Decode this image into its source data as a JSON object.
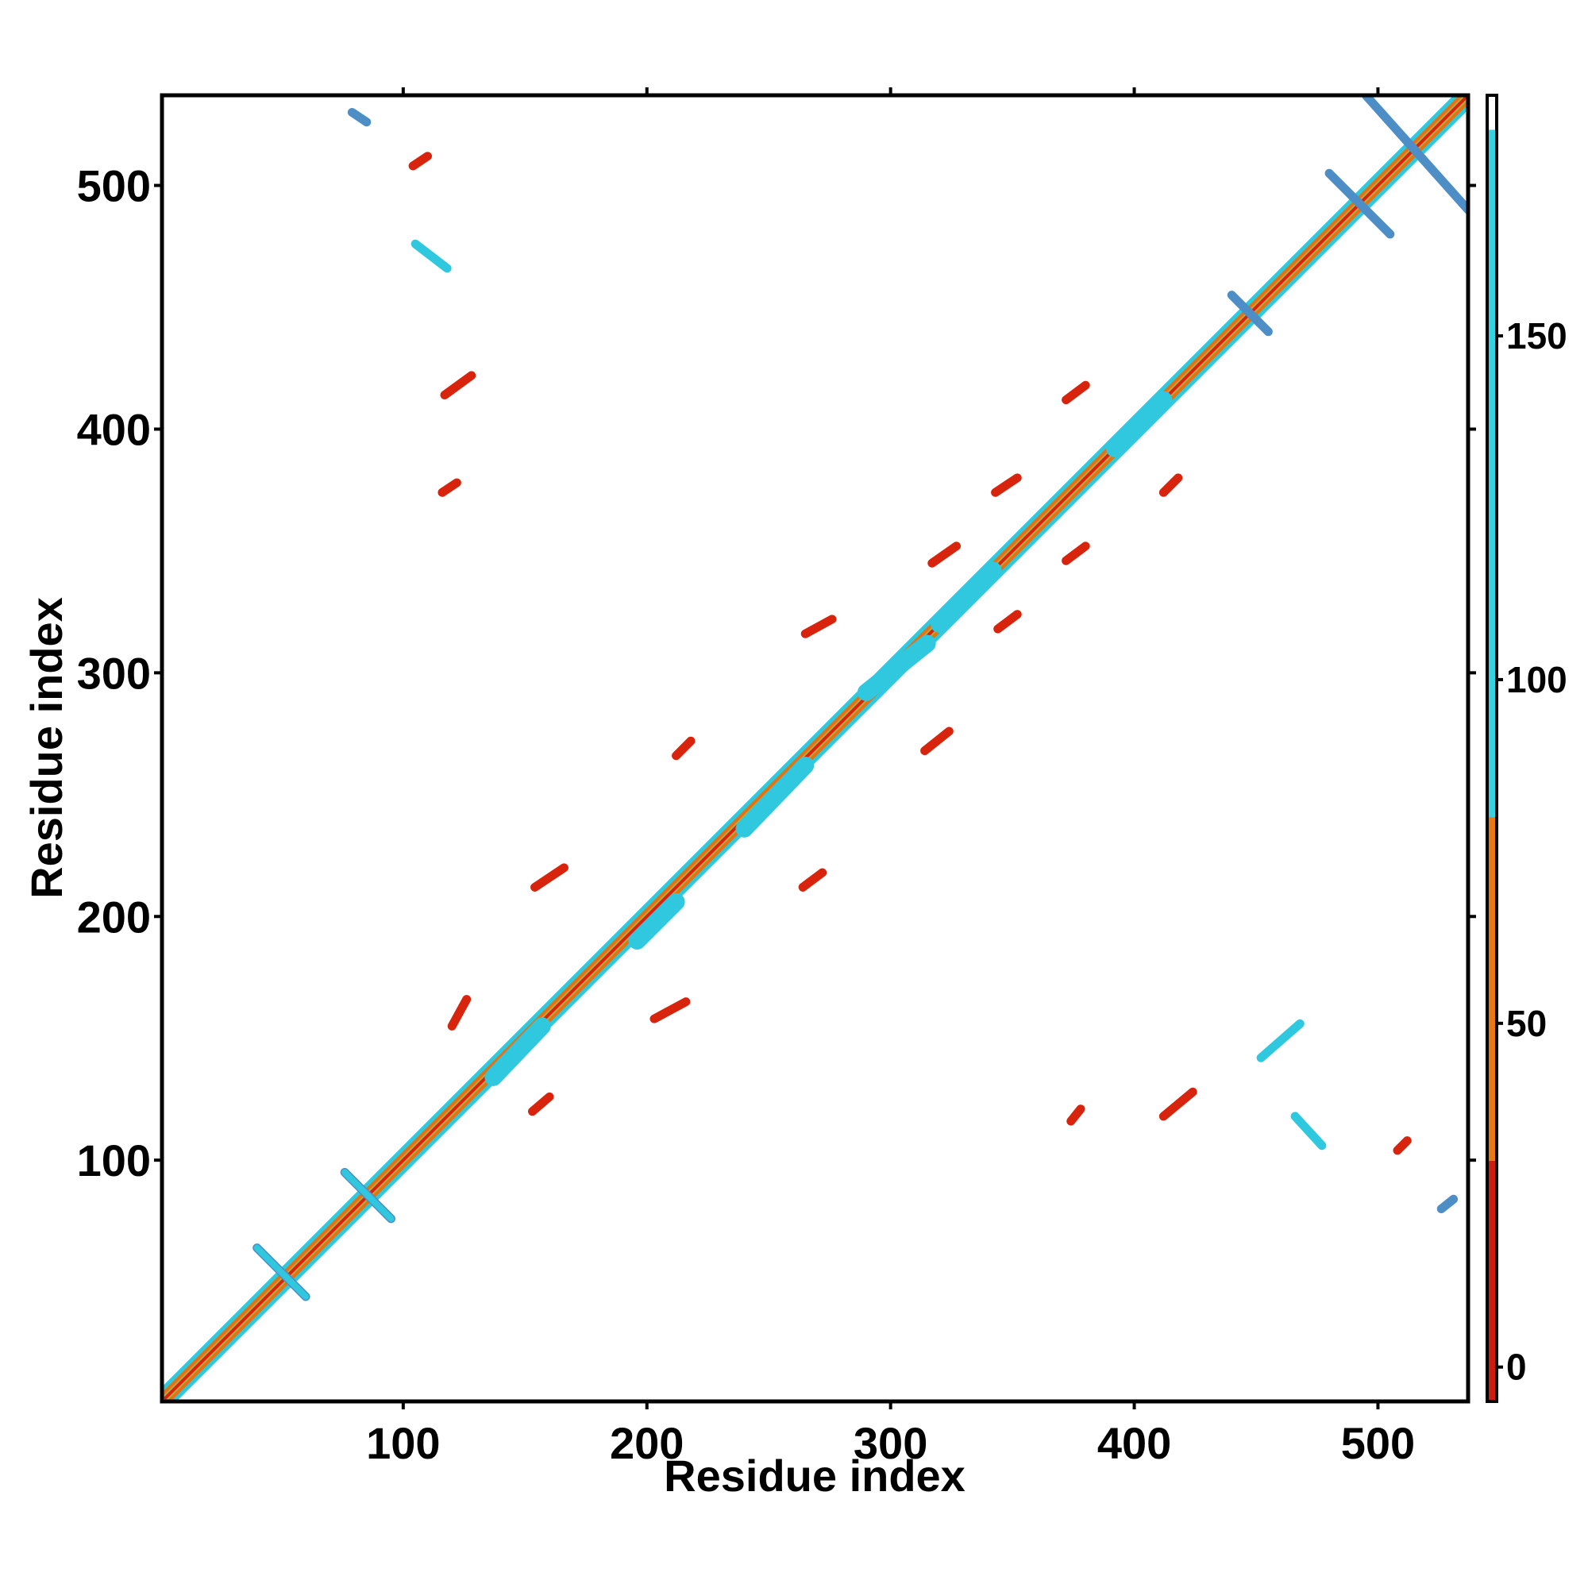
{
  "chart_data": {
    "type": "heatmap",
    "title": "",
    "xlabel": "Residue index",
    "ylabel": "Residue index",
    "xlim": [
      1,
      537
    ],
    "ylim": [
      1,
      537
    ],
    "x_ticks": [
      "100",
      "200",
      "300",
      "400",
      "500"
    ],
    "y_ticks": [
      "100",
      "200",
      "300",
      "400",
      "500"
    ],
    "grid": false,
    "legend": "colorbar-right",
    "colorbar": {
      "range": [
        -5,
        185
      ],
      "ticks": [
        "0",
        "50",
        "100",
        "150"
      ],
      "bands": [
        {
          "from": -5,
          "to": 30,
          "color": "#d01c0f"
        },
        {
          "from": 30,
          "to": 80,
          "color": "#e8780f"
        },
        {
          "from": 80,
          "to": 180,
          "color": "#34d3e3"
        },
        {
          "from": 180,
          "to": 185,
          "color": "#ffffff"
        }
      ]
    },
    "colors": {
      "red": "#d8230d",
      "orange": "#e8700f",
      "cyan": "#30c8df",
      "blue": "#4d8ec6",
      "green": "#a8b04a"
    },
    "segments": [
      {
        "i": [
          2,
          537
        ],
        "j": [
          2,
          537
        ],
        "band": "main-diagonal"
      },
      {
        "i": [
          40,
          60
        ],
        "j": [
          64,
          44
        ],
        "band": "blue-cyan",
        "value": 130
      },
      {
        "i": [
          76,
          95
        ],
        "j": [
          95,
          76
        ],
        "band": "blue-cyan",
        "value": 130
      },
      {
        "i": [
          137,
          157
        ],
        "j": [
          134,
          155
        ],
        "band": "cyan",
        "value": 100
      },
      {
        "i": [
          196,
          212
        ],
        "j": [
          190,
          206
        ],
        "band": "cyan",
        "value": 100
      },
      {
        "i": [
          240,
          265
        ],
        "j": [
          236,
          262
        ],
        "band": "cyan",
        "value": 100
      },
      {
        "i": [
          290,
          315
        ],
        "j": [
          292,
          312
        ],
        "band": "cyan",
        "value": 100
      },
      {
        "i": [
          320,
          342
        ],
        "j": [
          320,
          342
        ],
        "band": "cyan",
        "value": 100
      },
      {
        "i": [
          392,
          412
        ],
        "j": [
          392,
          412
        ],
        "band": "cyan",
        "value": 100
      },
      {
        "i": [
          440,
          455
        ],
        "j": [
          455,
          440
        ],
        "band": "blue",
        "value": 160
      },
      {
        "i": [
          480,
          505
        ],
        "j": [
          505,
          480
        ],
        "band": "blue",
        "value": 160
      },
      {
        "i": [
          495,
          537
        ],
        "j": [
          537,
          490
        ],
        "band": "blue",
        "value": 160
      },
      {
        "i": [
          79,
          85
        ],
        "j": [
          530,
          526
        ],
        "band": "blue",
        "value": 150
      },
      {
        "i": [
          104,
          110
        ],
        "j": [
          508,
          512
        ],
        "band": "red",
        "value": 10
      },
      {
        "i": [
          105,
          118
        ],
        "j": [
          476,
          466
        ],
        "band": "cyan",
        "value": 120
      },
      {
        "i": [
          117,
          128
        ],
        "j": [
          414,
          422
        ],
        "band": "red",
        "value": 10
      },
      {
        "i": [
          116,
          122
        ],
        "j": [
          374,
          378
        ],
        "band": "red",
        "value": 10
      },
      {
        "i": [
          154,
          166
        ],
        "j": [
          212,
          220
        ],
        "band": "red",
        "value": 20
      },
      {
        "i": [
          203,
          216
        ],
        "j": [
          158,
          165
        ],
        "band": "red",
        "value": 20
      },
      {
        "i": [
          212,
          218
        ],
        "j": [
          266,
          272
        ],
        "band": "red",
        "value": 10
      },
      {
        "i": [
          264,
          272
        ],
        "j": [
          212,
          218
        ],
        "band": "red",
        "value": 10
      },
      {
        "i": [
          265,
          276
        ],
        "j": [
          316,
          322
        ],
        "band": "red",
        "value": 20
      },
      {
        "i": [
          314,
          324
        ],
        "j": [
          268,
          276
        ],
        "band": "red",
        "value": 20
      },
      {
        "i": [
          317,
          327
        ],
        "j": [
          345,
          352
        ],
        "band": "red",
        "value": 20
      },
      {
        "i": [
          344,
          352
        ],
        "j": [
          318,
          324
        ],
        "band": "red",
        "value": 20
      },
      {
        "i": [
          343,
          352
        ],
        "j": [
          374,
          380
        ],
        "band": "red",
        "value": 20
      },
      {
        "i": [
          372,
          380
        ],
        "j": [
          346,
          352
        ],
        "band": "red",
        "value": 20
      },
      {
        "i": [
          372,
          380
        ],
        "j": [
          412,
          418
        ],
        "band": "red",
        "value": 20
      },
      {
        "i": [
          412,
          418
        ],
        "j": [
          374,
          380
        ],
        "band": "red",
        "value": 20
      },
      {
        "i": [
          374,
          378
        ],
        "j": [
          116,
          121
        ],
        "band": "red",
        "value": 10
      },
      {
        "i": [
          412,
          424
        ],
        "j": [
          118,
          128
        ],
        "band": "red",
        "value": 10
      },
      {
        "i": [
          466,
          477
        ],
        "j": [
          118,
          106
        ],
        "band": "cyan",
        "value": 120
      },
      {
        "i": [
          508,
          512
        ],
        "j": [
          104,
          108
        ],
        "band": "red",
        "value": 10
      },
      {
        "i": [
          526,
          531
        ],
        "j": [
          80,
          84
        ],
        "band": "blue",
        "value": 150
      },
      {
        "i": [
          452,
          468
        ],
        "j": [
          142,
          156
        ],
        "band": "cyan",
        "value": 100
      },
      {
        "i": [
          153,
          160
        ],
        "j": [
          120,
          126
        ],
        "band": "red",
        "value": 20
      },
      {
        "i": [
          120,
          126
        ],
        "j": [
          155,
          166
        ],
        "band": "red",
        "value": 20
      }
    ]
  }
}
